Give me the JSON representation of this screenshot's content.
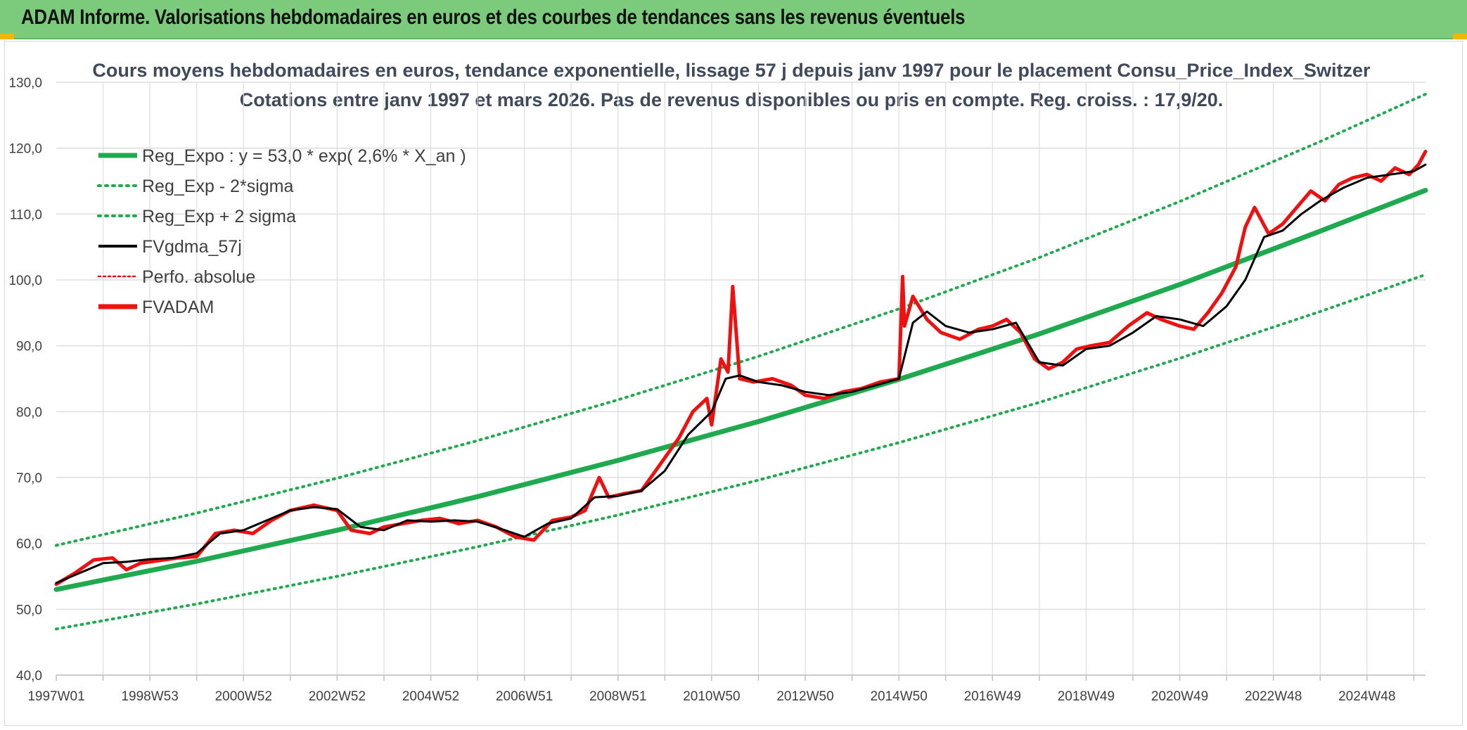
{
  "header": {
    "title": "ADAM Informe. Valorisations hebdomadaires en euros et des courbes de tendances sans les revenus éventuels"
  },
  "colors": {
    "header_bg": "#7ccb7c",
    "regression": "#1faa4f",
    "sigma": "#1faa4f",
    "smoothed": "#000000",
    "fvadam": "#ee1111",
    "perfo": "#ee1111",
    "grid": "#dddddd"
  },
  "chart_data": {
    "type": "line",
    "title": "Cours moyens hebdomadaires en euros, tendance exponentielle, lissage 57 j depuis janv 1997 pour le placement Consu_Price_Index_Switzer",
    "subtitle": "Cotations entre janv 1997 et mars 2026. Pas de revenus disponibles ou pris en compte. Reg. croiss. : 17,9/20.",
    "xlabel": "",
    "ylabel": "",
    "ylim": [
      40,
      130
    ],
    "xlim": [
      1997.0,
      2026.25
    ],
    "yticks": [
      "40,0",
      "50,0",
      "60,0",
      "70,0",
      "80,0",
      "90,0",
      "100,0",
      "110,0",
      "120,0",
      "130,0"
    ],
    "xticks": [
      {
        "label": "1997W01",
        "x": 1997.0
      },
      {
        "label": "1998W53",
        "x": 1999.0
      },
      {
        "label": "2000W52",
        "x": 2001.0
      },
      {
        "label": "2002W52",
        "x": 2003.0
      },
      {
        "label": "2004W52",
        "x": 2005.0
      },
      {
        "label": "2006W51",
        "x": 2007.0
      },
      {
        "label": "2008W51",
        "x": 2009.0
      },
      {
        "label": "2010W50",
        "x": 2011.0
      },
      {
        "label": "2012W50",
        "x": 2013.0
      },
      {
        "label": "2014W50",
        "x": 2015.0
      },
      {
        "label": "2016W49",
        "x": 2017.0
      },
      {
        "label": "2018W49",
        "x": 2019.0
      },
      {
        "label": "2020W49",
        "x": 2021.0
      },
      {
        "label": "2022W48",
        "x": 2023.0
      },
      {
        "label": "2024W48",
        "x": 2025.0
      }
    ],
    "grid": true,
    "legend_position": "top-left",
    "legend": [
      {
        "label": "Reg_Expo : y = 53,0 * exp( 2,6% *  X_an )",
        "style": "solid-thick",
        "color": "#1faa4f"
      },
      {
        "label": "Reg_Exp - 2*sigma",
        "style": "dotted",
        "color": "#1faa4f"
      },
      {
        "label": "Reg_Exp + 2 sigma",
        "style": "dotted",
        "color": "#1faa4f"
      },
      {
        "label": "FVgdma_57j",
        "style": "solid",
        "color": "#000000"
      },
      {
        "label": "Perfo. absolue",
        "style": "dotted-thin",
        "color": "#ee1111"
      },
      {
        "label": "FVADAM",
        "style": "solid-thick",
        "color": "#ee1111"
      }
    ],
    "series": [
      {
        "name": "Reg_Expo : y = 53,0 * exp( 2,6% *  X_an )",
        "x": [
          1997.0,
          2000.0,
          2003.0,
          2006.0,
          2009.0,
          2012.0,
          2015.0,
          2018.0,
          2021.0,
          2024.0,
          2026.25
        ],
        "y": [
          53.0,
          57.3,
          62.0,
          67.1,
          72.6,
          78.5,
          84.9,
          91.8,
          99.3,
          107.4,
          113.6
        ]
      },
      {
        "name": "Reg_Exp - 2*sigma",
        "x": [
          1997.0,
          2000.0,
          2003.0,
          2006.0,
          2009.0,
          2012.0,
          2015.0,
          2018.0,
          2021.0,
          2024.0,
          2026.25
        ],
        "y": [
          47.0,
          50.8,
          55.0,
          59.5,
          64.3,
          69.6,
          75.3,
          81.4,
          88.1,
          95.2,
          100.8
        ]
      },
      {
        "name": "Reg_Exp + 2 sigma",
        "x": [
          1997.0,
          2000.0,
          2003.0,
          2006.0,
          2009.0,
          2012.0,
          2015.0,
          2018.0,
          2021.0,
          2024.0,
          2026.25
        ],
        "y": [
          59.7,
          64.6,
          69.9,
          75.6,
          81.8,
          88.4,
          95.6,
          103.4,
          111.9,
          121.0,
          128.2
        ]
      },
      {
        "name": "FVgdma_57j",
        "x": [
          1997.0,
          1997.5,
          1998.0,
          1998.5,
          1999.0,
          1999.5,
          2000.0,
          2000.5,
          2001.0,
          2001.5,
          2002.0,
          2002.5,
          2003.0,
          2003.5,
          2004.0,
          2004.5,
          2005.0,
          2005.5,
          2006.0,
          2006.5,
          2007.0,
          2007.5,
          2008.0,
          2008.5,
          2009.0,
          2009.5,
          2010.0,
          2010.5,
          2011.0,
          2011.3,
          2011.6,
          2012.0,
          2012.5,
          2013.0,
          2013.5,
          2014.0,
          2014.5,
          2015.0,
          2015.3,
          2015.6,
          2016.0,
          2016.5,
          2017.0,
          2017.5,
          2018.0,
          2018.5,
          2019.0,
          2019.5,
          2020.0,
          2020.5,
          2021.0,
          2021.5,
          2022.0,
          2022.4,
          2022.8,
          2023.2,
          2023.6,
          2024.0,
          2024.5,
          2025.0,
          2025.5,
          2026.0,
          2026.25
        ],
        "y": [
          54.0,
          55.5,
          57.0,
          57.2,
          57.6,
          57.8,
          58.5,
          61.5,
          62.0,
          63.5,
          65.0,
          65.5,
          65.2,
          62.5,
          62.0,
          63.5,
          63.3,
          63.5,
          63.3,
          62.2,
          61.0,
          63.0,
          63.8,
          67.0,
          67.2,
          68.0,
          71.0,
          76.5,
          80.0,
          85.0,
          85.5,
          84.5,
          84.0,
          83.0,
          82.5,
          83.0,
          84.0,
          85.0,
          93.5,
          95.2,
          93.0,
          92.0,
          92.5,
          93.5,
          87.5,
          87.0,
          89.5,
          90.0,
          92.0,
          94.5,
          94.0,
          93.0,
          96.0,
          100.0,
          106.5,
          107.5,
          110.0,
          112.0,
          114.0,
          115.5,
          116.0,
          116.5,
          117.5
        ]
      },
      {
        "name": "FVADAM",
        "x": [
          1997.0,
          1997.4,
          1997.8,
          1998.2,
          1998.5,
          1998.8,
          1999.2,
          1999.6,
          2000.0,
          2000.4,
          2000.8,
          2001.2,
          2001.6,
          2002.0,
          2002.5,
          2003.0,
          2003.3,
          2003.7,
          2004.0,
          2004.4,
          2004.8,
          2005.2,
          2005.6,
          2006.0,
          2006.4,
          2006.8,
          2007.2,
          2007.6,
          2008.0,
          2008.3,
          2008.6,
          2008.8,
          2009.1,
          2009.5,
          2009.9,
          2010.3,
          2010.6,
          2010.9,
          2011.0,
          2011.2,
          2011.35,
          2011.45,
          2011.6,
          2011.9,
          2012.3,
          2012.7,
          2013.0,
          2013.4,
          2013.8,
          2014.2,
          2014.6,
          2015.0,
          2015.08,
          2015.12,
          2015.3,
          2015.6,
          2015.9,
          2016.3,
          2016.7,
          2017.0,
          2017.3,
          2017.6,
          2017.9,
          2018.2,
          2018.5,
          2018.8,
          2019.1,
          2019.5,
          2019.9,
          2020.3,
          2020.6,
          2021.0,
          2021.3,
          2021.6,
          2021.9,
          2022.2,
          2022.4,
          2022.6,
          2022.9,
          2023.2,
          2023.5,
          2023.8,
          2024.1,
          2024.4,
          2024.7,
          2025.0,
          2025.3,
          2025.6,
          2025.9,
          2026.1,
          2026.25
        ],
        "y": [
          53.8,
          55.5,
          57.5,
          57.8,
          56.0,
          57.0,
          57.4,
          57.8,
          58.0,
          61.5,
          62.0,
          61.5,
          63.5,
          65.0,
          65.8,
          65.0,
          62.0,
          61.5,
          62.5,
          63.0,
          63.5,
          63.8,
          63.0,
          63.5,
          62.5,
          61.0,
          60.5,
          63.5,
          64.0,
          65.0,
          70.0,
          67.0,
          67.5,
          68.0,
          72.0,
          76.0,
          80.0,
          82.0,
          78.0,
          88.0,
          86.0,
          99.0,
          85.0,
          84.5,
          85.0,
          84.0,
          82.5,
          82.0,
          83.0,
          83.5,
          84.5,
          85.0,
          100.5,
          93.0,
          97.5,
          94.0,
          92.0,
          91.0,
          92.5,
          93.0,
          94.0,
          92.0,
          88.0,
          86.5,
          87.5,
          89.5,
          90.0,
          90.5,
          93.0,
          95.0,
          94.0,
          93.0,
          92.5,
          95.0,
          98.0,
          102.0,
          108.0,
          111.0,
          107.0,
          108.5,
          111.0,
          113.5,
          112.0,
          114.5,
          115.5,
          116.0,
          115.0,
          117.0,
          116.0,
          117.5,
          119.5
        ]
      }
    ]
  }
}
